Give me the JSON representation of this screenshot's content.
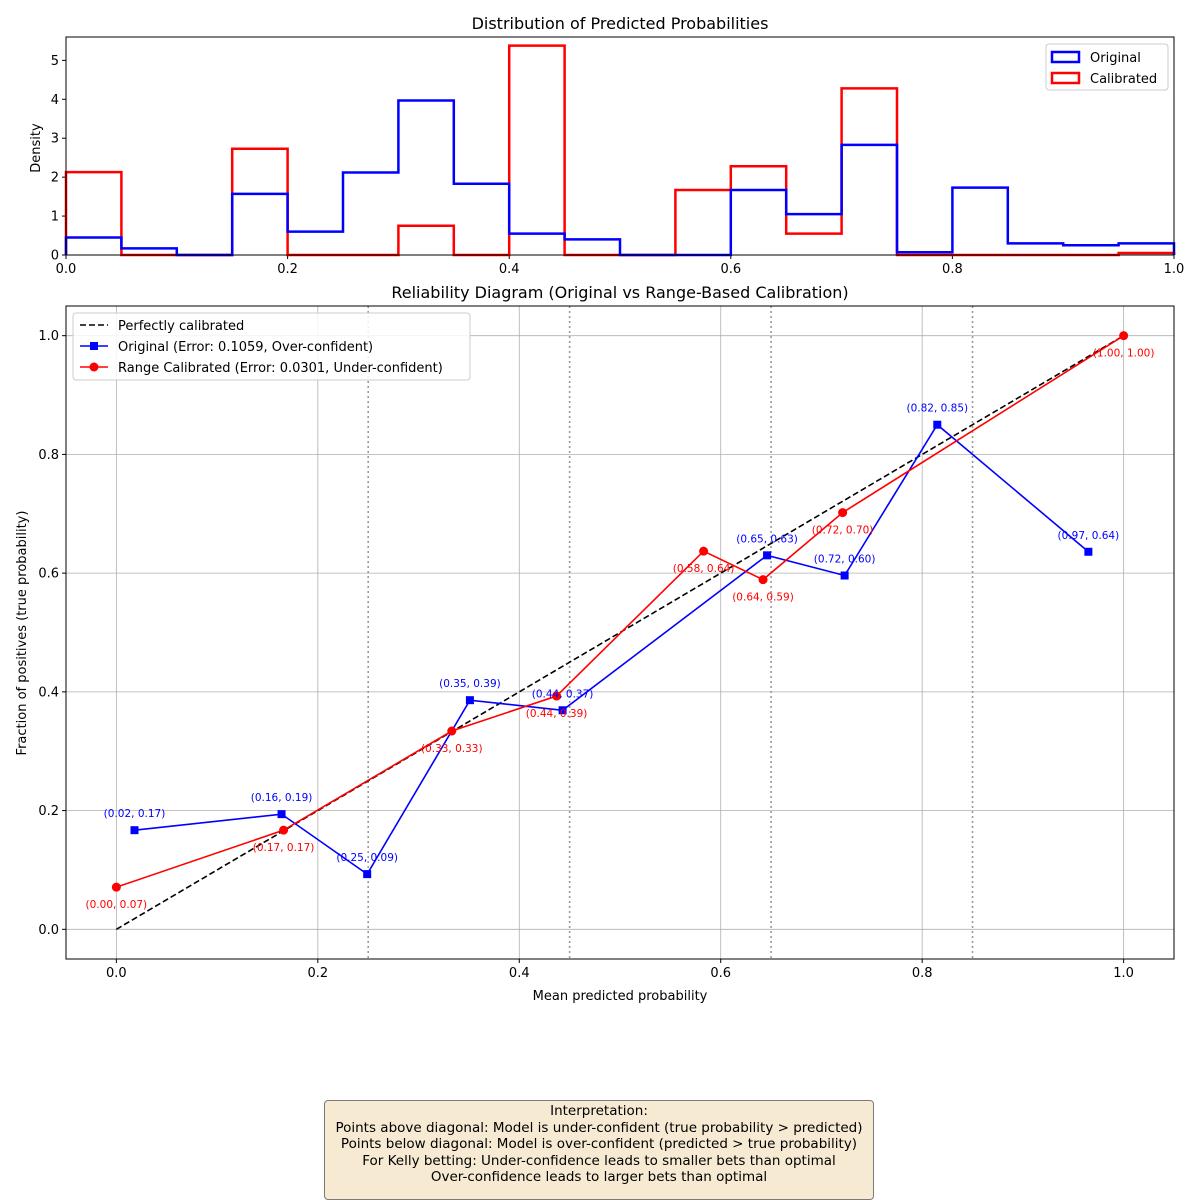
{
  "chart_data": [
    {
      "type": "histogram",
      "title": "Distribution of Predicted Probabilities",
      "xlabel": "",
      "ylabel": "Density",
      "xlim": [
        0.0,
        1.0
      ],
      "ylim": [
        0,
        5.6
      ],
      "xticks": [
        "0.0",
        "0.2",
        "0.4",
        "0.6",
        "0.8",
        "1.0"
      ],
      "yticks": [
        "0",
        "1",
        "2",
        "3",
        "4",
        "5"
      ],
      "bin_edges": [
        0.0,
        0.05,
        0.1,
        0.15,
        0.2,
        0.25,
        0.3,
        0.35,
        0.4,
        0.45,
        0.5,
        0.55,
        0.6,
        0.65,
        0.7,
        0.75,
        0.8,
        0.85,
        0.9,
        0.95,
        1.0
      ],
      "legend_position": "upper right",
      "series": [
        {
          "name": "Original",
          "color": "#0000ff",
          "values": [
            0.45,
            0.17,
            0,
            1.57,
            0.6,
            2.12,
            3.97,
            1.83,
            0.55,
            0.4,
            0,
            0,
            1.67,
            1.05,
            2.83,
            0.07,
            1.73,
            0.3,
            0.25,
            0.3
          ]
        },
        {
          "name": "Calibrated",
          "color": "#ff0000",
          "values": [
            2.13,
            0,
            0,
            2.73,
            0,
            0,
            0.75,
            0,
            5.38,
            0,
            0,
            1.67,
            2.28,
            0.55,
            4.28,
            0,
            0,
            0,
            0,
            0.05
          ]
        }
      ]
    },
    {
      "type": "line",
      "title": "Reliability Diagram (Original vs Range-Based Calibration)",
      "xlabel": "Mean predicted probability",
      "ylabel": "Fraction of positives (true probability)",
      "xlim": [
        -0.05,
        1.05
      ],
      "ylim": [
        -0.05,
        1.05
      ],
      "xticks": [
        "0.0",
        "0.2",
        "0.4",
        "0.6",
        "0.8",
        "1.0"
      ],
      "yticks": [
        "0.0",
        "0.2",
        "0.4",
        "0.6",
        "0.8",
        "1.0"
      ],
      "grid": true,
      "legend_position": "upper left",
      "vlines": [
        0.25,
        0.45,
        0.65,
        0.85
      ],
      "diagonal": {
        "name": "Perfectly calibrated",
        "color": "#000000",
        "x": [
          0,
          1
        ],
        "y": [
          0,
          1
        ]
      },
      "series": [
        {
          "name": "Original (Error: 0.1059, Over-confident)",
          "color": "#0000ff",
          "marker": "square",
          "x": [
            0.018,
            0.164,
            0.249,
            0.351,
            0.443,
            0.646,
            0.723,
            0.815,
            0.965
          ],
          "y": [
            0.167,
            0.194,
            0.093,
            0.386,
            0.369,
            0.63,
            0.596,
            0.85,
            0.636
          ],
          "labels": [
            "(0.02, 0.17)",
            "(0.16, 0.19)",
            "(0.25, 0.09)",
            "(0.35, 0.39)",
            "(0.44, 0.37)",
            "(0.65, 0.63)",
            "(0.72, 0.60)",
            "(0.82, 0.85)",
            "(0.97, 0.64)"
          ]
        },
        {
          "name": "Range Calibrated (Error: 0.0301, Under-confident)",
          "color": "#ff0000",
          "marker": "circle",
          "x": [
            0.0,
            0.166,
            0.333,
            0.437,
            0.583,
            0.642,
            0.721,
            1.0
          ],
          "y": [
            0.071,
            0.167,
            0.334,
            0.393,
            0.637,
            0.589,
            0.702,
            1.0
          ],
          "labels": [
            "(0.00, 0.07)",
            "(0.17, 0.17)",
            "(0.33, 0.33)",
            "(0.44, 0.39)",
            "(0.58, 0.64)",
            "(0.64, 0.59)",
            "(0.72, 0.70)",
            "(1.00, 1.00)"
          ]
        }
      ]
    }
  ],
  "interpretation": {
    "title": "Interpretation:",
    "line1": "Points above diagonal: Model is under-confident (true probability > predicted)",
    "line2": "Points below diagonal: Model is over-confident (predicted > true probability)",
    "line3": "For Kelly betting: Under-confidence leads to smaller bets than optimal",
    "line4": "Over-confidence leads to larger bets than optimal"
  }
}
